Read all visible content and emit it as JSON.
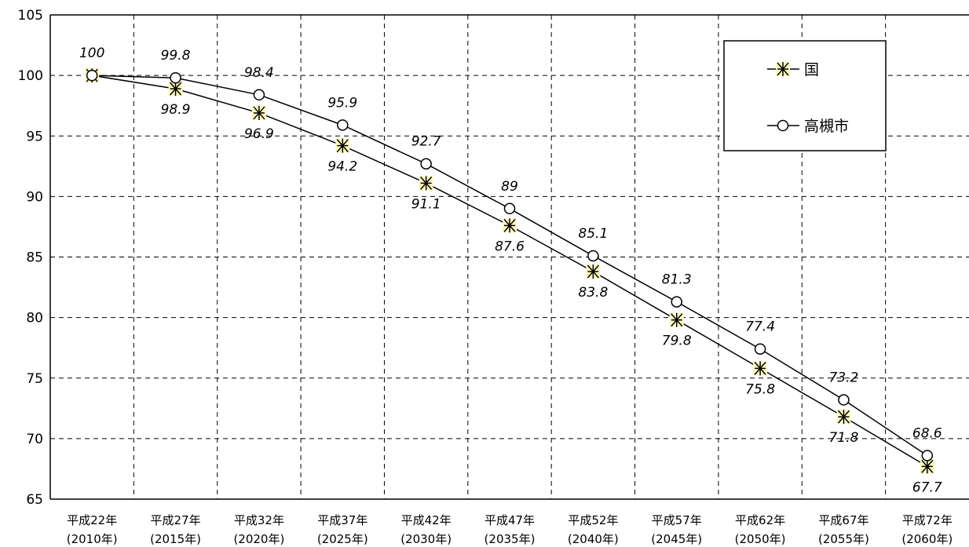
{
  "chart_data": {
    "type": "line",
    "categories": [
      [
        "平成22年",
        "(2010年)"
      ],
      [
        "平成27年",
        "(2015年)"
      ],
      [
        "平成32年",
        "(2020年)"
      ],
      [
        "平成37年",
        "(2025年)"
      ],
      [
        "平成42年",
        "(2030年)"
      ],
      [
        "平成47年",
        "(2035年)"
      ],
      [
        "平成52年",
        "(2040年)"
      ],
      [
        "平成57年",
        "(2045年)"
      ],
      [
        "平成62年",
        "(2050年)"
      ],
      [
        "平成67年",
        "(2055年)"
      ],
      [
        "平成72年",
        "(2060年)"
      ]
    ],
    "series": [
      {
        "name": "国",
        "marker": "asterisk",
        "values": [
          100,
          98.9,
          96.9,
          94.2,
          91.1,
          87.6,
          83.8,
          79.8,
          75.8,
          71.8,
          67.7
        ],
        "labels": [
          "",
          "98.9",
          "96.9",
          "94.2",
          "91.1",
          "87.6",
          "83.8",
          "79.8",
          "75.8",
          "71.8",
          "67.7"
        ]
      },
      {
        "name": "高槻市",
        "marker": "circle",
        "values": [
          100,
          99.8,
          98.4,
          95.9,
          92.7,
          89,
          85.1,
          81.3,
          77.4,
          73.2,
          68.6
        ],
        "labels": [
          "100",
          "99.8",
          "98.4",
          "95.9",
          "92.7",
          "89",
          "85.1",
          "81.3",
          "77.4",
          "73.2",
          "68.6"
        ]
      }
    ],
    "title": "",
    "xlabel": "",
    "ylabel": "",
    "ylim": [
      65,
      105
    ],
    "yticks": [
      "65",
      "70",
      "75",
      "80",
      "85",
      "90",
      "95",
      "100",
      "105"
    ],
    "grid": true,
    "legend_position": "top-right",
    "colors": {
      "line": "#000000",
      "marker_fill": "#ffffff",
      "asterisk_highlight": "#fff7c2"
    }
  }
}
